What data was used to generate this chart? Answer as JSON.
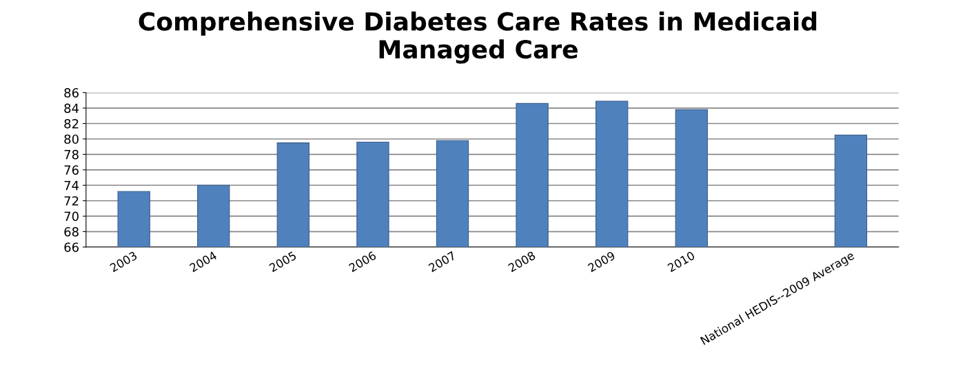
{
  "chart_data": {
    "type": "bar",
    "title": "Comprehensive Diabetes Care Rates in Medicaid\nManaged Care",
    "categories": [
      "2003",
      "2004",
      "2005",
      "2006",
      "2007",
      "2008",
      "2009",
      "2010",
      null,
      "National HEDIS--2009 Average"
    ],
    "values": [
      73.2,
      74.0,
      79.5,
      79.6,
      79.8,
      84.6,
      84.9,
      83.8,
      null,
      80.5
    ],
    "color": "#4f81bd",
    "ylim": [
      66,
      86
    ],
    "yticks": [
      66,
      68,
      70,
      72,
      74,
      76,
      78,
      80,
      82,
      84,
      86
    ],
    "grid": "y"
  }
}
